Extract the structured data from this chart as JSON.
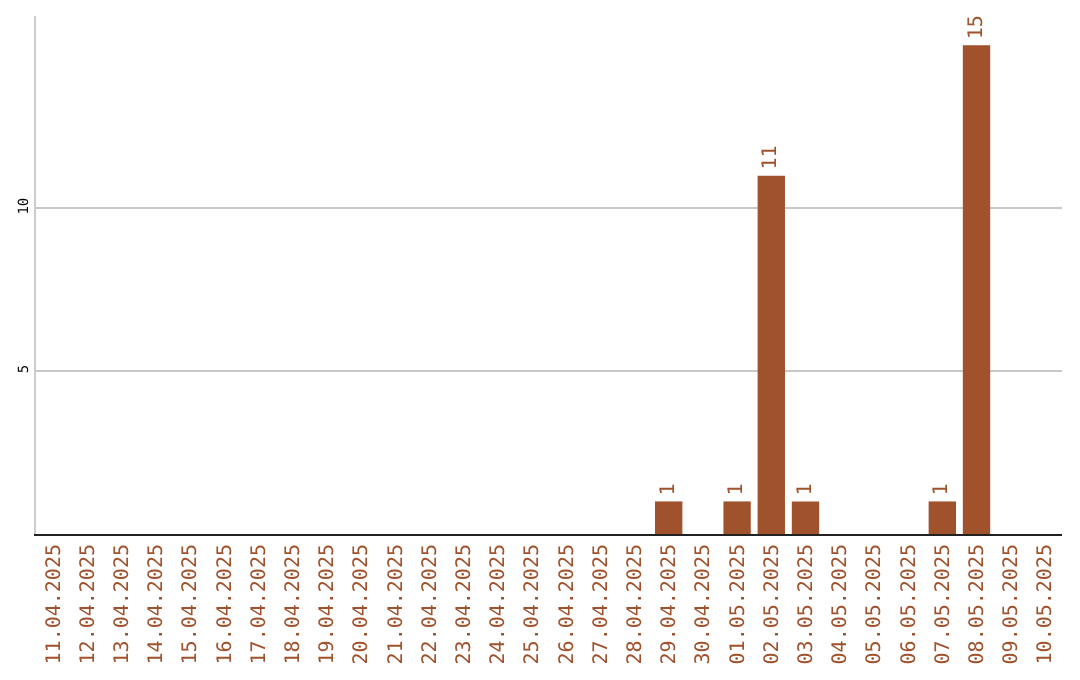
{
  "chart_data": {
    "type": "bar",
    "categories": [
      "11.04.2025",
      "12.04.2025",
      "13.04.2025",
      "14.04.2025",
      "15.04.2025",
      "16.04.2025",
      "17.04.2025",
      "18.04.2025",
      "19.04.2025",
      "20.04.2025",
      "21.04.2025",
      "22.04.2025",
      "23.04.2025",
      "24.04.2025",
      "25.04.2025",
      "26.04.2025",
      "27.04.2025",
      "28.04.2025",
      "29.04.2025",
      "30.04.2025",
      "01.05.2025",
      "02.05.2025",
      "03.05.2025",
      "04.05.2025",
      "05.05.2025",
      "06.05.2025",
      "07.05.2025",
      "08.05.2025",
      "09.05.2025",
      "10.05.2025"
    ],
    "values": [
      0,
      0,
      0,
      0,
      0,
      0,
      0,
      0,
      0,
      0,
      0,
      0,
      0,
      0,
      0,
      0,
      0,
      0,
      1,
      0,
      1,
      11,
      1,
      0,
      0,
      0,
      1,
      15,
      0,
      0
    ],
    "value_labels": [
      null,
      null,
      null,
      null,
      null,
      null,
      null,
      null,
      null,
      null,
      null,
      null,
      null,
      null,
      null,
      null,
      null,
      null,
      "1",
      null,
      "1",
      "11",
      "1",
      null,
      null,
      null,
      "1",
      "15",
      null,
      null
    ],
    "color": "#a0522d",
    "ylim": [
      0,
      15.9
    ],
    "yticks": [
      5,
      10
    ],
    "grid": "y"
  }
}
